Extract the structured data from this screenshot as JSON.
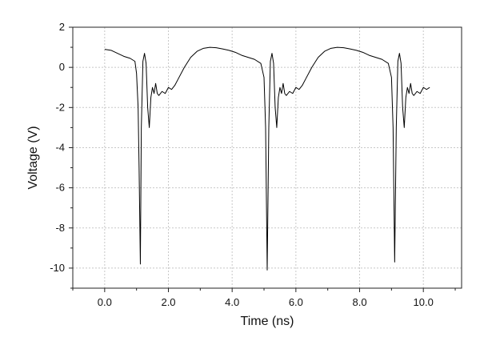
{
  "chart_data": {
    "type": "line",
    "title": "",
    "xlabel": "Time (ns)",
    "ylabel": "Voltage (V)",
    "xlim": [
      -1.0,
      11.2
    ],
    "ylim": [
      -11,
      2
    ],
    "x_ticks": [
      0.0,
      2.0,
      4.0,
      6.0,
      8.0,
      10.0
    ],
    "x_tick_labels": [
      "0.0",
      "2.0",
      "4.0",
      "6.0",
      "8.0",
      "10.0"
    ],
    "y_ticks": [
      2,
      0,
      -2,
      -4,
      -6,
      -8,
      -10
    ],
    "y_tick_labels": [
      "2",
      "0",
      "-2",
      "-4",
      "-6",
      "-8",
      "-10"
    ],
    "grid": true,
    "legend": "none",
    "line_color": "#000000",
    "series": [
      {
        "x": [
          0.0,
          0.2,
          0.4,
          0.6,
          0.8,
          0.95,
          1.0,
          1.05,
          1.08,
          1.12,
          1.15,
          1.2,
          1.25,
          1.3,
          1.35,
          1.4,
          1.45,
          1.5,
          1.55,
          1.6,
          1.65,
          1.7,
          1.8,
          1.9,
          2.0,
          2.1,
          2.2,
          2.3,
          2.5,
          2.7,
          2.9,
          3.1,
          3.3,
          3.5,
          3.7,
          3.9,
          4.1,
          4.3,
          4.5,
          4.7,
          4.9,
          5.0,
          5.05,
          5.1,
          5.15,
          5.2,
          5.25,
          5.3,
          5.35,
          5.4,
          5.45,
          5.5,
          5.55,
          5.6,
          5.65,
          5.7,
          5.8,
          5.9,
          6.0,
          6.1,
          6.2,
          6.3,
          6.5,
          6.7,
          6.9,
          7.1,
          7.3,
          7.5,
          7.7,
          7.9,
          8.1,
          8.3,
          8.5,
          8.7,
          8.9,
          9.0,
          9.05,
          9.1,
          9.15,
          9.2,
          9.25,
          9.3,
          9.35,
          9.4,
          9.45,
          9.5,
          9.55,
          9.6,
          9.65,
          9.7,
          9.8,
          9.9,
          10.0,
          10.1,
          10.2
        ],
        "y": [
          0.9,
          0.85,
          0.7,
          0.55,
          0.45,
          0.3,
          -0.3,
          -2.0,
          -5.0,
          -9.8,
          -3.0,
          0.3,
          0.7,
          0.2,
          -2.0,
          -3.0,
          -1.5,
          -1.0,
          -1.3,
          -0.8,
          -1.3,
          -1.4,
          -1.2,
          -1.3,
          -1.0,
          -1.1,
          -0.9,
          -0.6,
          0.0,
          0.5,
          0.8,
          0.95,
          1.0,
          0.98,
          0.92,
          0.85,
          0.75,
          0.6,
          0.5,
          0.4,
          0.2,
          -0.5,
          -3.0,
          -10.1,
          -3.0,
          0.3,
          0.7,
          0.2,
          -2.0,
          -3.0,
          -1.5,
          -1.0,
          -1.3,
          -0.8,
          -1.3,
          -1.4,
          -1.2,
          -1.3,
          -1.0,
          -1.1,
          -0.9,
          -0.6,
          0.0,
          0.5,
          0.8,
          0.95,
          1.0,
          0.98,
          0.92,
          0.85,
          0.75,
          0.6,
          0.5,
          0.4,
          0.2,
          -0.5,
          -3.0,
          -9.7,
          -3.0,
          0.3,
          0.7,
          0.2,
          -2.0,
          -3.0,
          -1.5,
          -1.0,
          -1.3,
          -0.8,
          -1.3,
          -1.4,
          -1.2,
          -1.3,
          -1.0,
          -1.1,
          -1.0
        ]
      }
    ]
  }
}
